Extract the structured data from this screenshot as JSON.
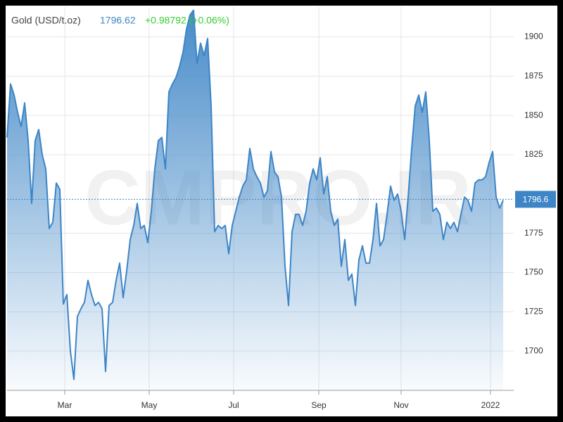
{
  "chart_data": {
    "type": "area",
    "title": "Gold (USD/t.oz)",
    "price": "1796.62",
    "change": "+0.98792 (+0.06%)",
    "watermark": "CMPRO.IR",
    "last_value": 1796.6,
    "color": "#3d85c6",
    "title_color": "#444444",
    "price_color": "#3d85c6",
    "change_color": "#33cc33",
    "grid": true,
    "xlim": [
      0,
      141
    ],
    "xticks": [
      {
        "value": 16.4,
        "label": "Mar"
      },
      {
        "value": 40.4,
        "label": "May"
      },
      {
        "value": 64.4,
        "label": "Jul"
      },
      {
        "value": 88.6,
        "label": "Sep"
      },
      {
        "value": 112,
        "label": "Nov"
      },
      {
        "value": 137.4,
        "label": "2022"
      }
    ],
    "ylim": [
      1675,
      1919
    ],
    "yticks": [
      1700,
      1725,
      1750,
      1775,
      1825,
      1850,
      1875,
      1900
    ],
    "values": [
      1836,
      1870,
      1863,
      1852,
      1843,
      1858,
      1834,
      1794,
      1834,
      1841,
      1825,
      1816,
      1778,
      1782,
      1807,
      1803,
      1730,
      1736,
      1700,
      1682,
      1722,
      1727,
      1731,
      1745,
      1736,
      1729,
      1731,
      1727,
      1687,
      1729,
      1731,
      1745,
      1756,
      1734,
      1751,
      1771,
      1780,
      1794,
      1778,
      1780,
      1769,
      1789,
      1816,
      1834,
      1836,
      1816,
      1865,
      1870,
      1874,
      1881,
      1890,
      1905,
      1914,
      1917,
      1883,
      1896,
      1888,
      1899,
      1856,
      1776,
      1780,
      1778,
      1780,
      1762,
      1780,
      1789,
      1798,
      1805,
      1809,
      1829,
      1816,
      1811,
      1807,
      1798,
      1802,
      1827,
      1814,
      1811,
      1798,
      1754,
      1729,
      1776,
      1787,
      1787,
      1780,
      1789,
      1807,
      1816,
      1809,
      1823,
      1800,
      1811,
      1789,
      1780,
      1784,
      1754,
      1771,
      1745,
      1749,
      1729,
      1758,
      1767,
      1756,
      1756,
      1771,
      1794,
      1767,
      1771,
      1787,
      1805,
      1796,
      1800,
      1789,
      1771,
      1798,
      1829,
      1856,
      1863,
      1852,
      1865,
      1834,
      1789,
      1791,
      1787,
      1771,
      1782,
      1778,
      1782,
      1776,
      1787,
      1798,
      1796,
      1789,
      1807,
      1809,
      1809,
      1811,
      1820,
      1827,
      1798,
      1791,
      1796
    ]
  }
}
